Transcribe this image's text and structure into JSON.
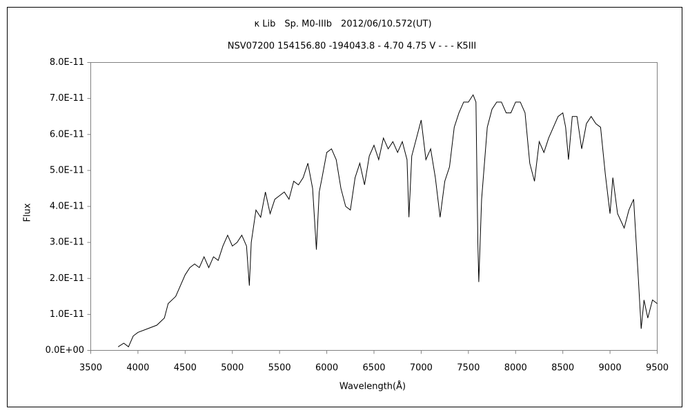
{
  "chart_data": {
    "type": "line",
    "title": "κ Lib　Sp. M0-IIIb　2012/06/10.572(UT)",
    "subtitle": "NSV07200 154156.80 -194043.8 - 4.70 4.75 V - - - K5III",
    "x_label": "Wavelength(Å)",
    "y_label": "Flux",
    "color": "#000000",
    "x": [
      3790,
      3850,
      3900,
      3950,
      4000,
      4100,
      4200,
      4280,
      4320,
      4400,
      4450,
      4500,
      4550,
      4600,
      4650,
      4700,
      4750,
      4800,
      4850,
      4900,
      4950,
      5000,
      5050,
      5100,
      5150,
      5180,
      5200,
      5250,
      5300,
      5350,
      5400,
      5450,
      5500,
      5550,
      5600,
      5650,
      5700,
      5750,
      5800,
      5850,
      5890,
      5920,
      5950,
      6000,
      6050,
      6100,
      6150,
      6200,
      6250,
      6300,
      6350,
      6400,
      6450,
      6500,
      6550,
      6600,
      6650,
      6700,
      6750,
      6800,
      6850,
      6870,
      6900,
      6950,
      7000,
      7050,
      7100,
      7150,
      7200,
      7250,
      7300,
      7350,
      7400,
      7450,
      7500,
      7550,
      7580,
      7600,
      7610,
      7640,
      7700,
      7750,
      7800,
      7850,
      7900,
      7950,
      8000,
      8050,
      8100,
      8150,
      8200,
      8250,
      8300,
      8350,
      8400,
      8450,
      8500,
      8530,
      8560,
      8600,
      8650,
      8700,
      8750,
      8800,
      8850,
      8900,
      8950,
      9000,
      9030,
      9080,
      9150,
      9200,
      9250,
      9300,
      9330,
      9360,
      9400,
      9450,
      9500
    ],
    "values": [
      1e-12,
      2e-12,
      1e-12,
      4e-12,
      5e-12,
      6e-12,
      7e-12,
      9e-12,
      1.3e-11,
      1.5e-11,
      1.8e-11,
      2.1e-11,
      2.3e-11,
      2.4e-11,
      2.3e-11,
      2.6e-11,
      2.3e-11,
      2.6e-11,
      2.5e-11,
      2.9e-11,
      3.2e-11,
      2.9e-11,
      3e-11,
      3.2e-11,
      2.9e-11,
      1.8e-11,
      3e-11,
      3.9e-11,
      3.7e-11,
      4.4e-11,
      3.8e-11,
      4.2e-11,
      4.3e-11,
      4.4e-11,
      4.2e-11,
      4.7e-11,
      4.6e-11,
      4.8e-11,
      5.2e-11,
      4.5e-11,
      2.8e-11,
      4.4e-11,
      4.8e-11,
      5.5e-11,
      5.6e-11,
      5.3e-11,
      4.5e-11,
      4e-11,
      3.9e-11,
      4.8e-11,
      5.2e-11,
      4.6e-11,
      5.4e-11,
      5.7e-11,
      5.3e-11,
      5.9e-11,
      5.6e-11,
      5.8e-11,
      5.5e-11,
      5.8e-11,
      5.3e-11,
      3.7e-11,
      5.4e-11,
      5.9e-11,
      6.4e-11,
      5.3e-11,
      5.6e-11,
      4.8e-11,
      3.7e-11,
      4.7e-11,
      5.1e-11,
      6.2e-11,
      6.6e-11,
      6.9e-11,
      6.9e-11,
      7.1e-11,
      6.9e-11,
      3e-11,
      1.9e-11,
      4.2e-11,
      6.2e-11,
      6.7e-11,
      6.9e-11,
      6.9e-11,
      6.6e-11,
      6.6e-11,
      6.9e-11,
      6.9e-11,
      6.6e-11,
      5.2e-11,
      4.7e-11,
      5.8e-11,
      5.5e-11,
      5.9e-11,
      6.2e-11,
      6.5e-11,
      6.6e-11,
      6.2e-11,
      5.3e-11,
      6.5e-11,
      6.5e-11,
      5.6e-11,
      6.3e-11,
      6.5e-11,
      6.3e-11,
      6.2e-11,
      4.9e-11,
      3.8e-11,
      4.8e-11,
      3.8e-11,
      3.4e-11,
      3.9e-11,
      4.2e-11,
      2e-11,
      6e-12,
      1.4e-11,
      9e-12,
      1.4e-11,
      1.3e-11
    ],
    "xlim": [
      3500,
      9500
    ],
    "xticks": [
      3500,
      4000,
      4500,
      5000,
      5500,
      6000,
      6500,
      7000,
      7500,
      8000,
      8500,
      9000,
      9500
    ],
    "ylim": [
      0,
      8e-11
    ],
    "yticks": [
      {
        "value": 0,
        "label": "0.0E+00"
      },
      {
        "value": 1e-11,
        "label": "1.0E-11"
      },
      {
        "value": 2e-11,
        "label": "2.0E-11"
      },
      {
        "value": 3e-11,
        "label": "3.0E-11"
      },
      {
        "value": 4e-11,
        "label": "4.0E-11"
      },
      {
        "value": 5e-11,
        "label": "5.0E-11"
      },
      {
        "value": 6e-11,
        "label": "6.0E-11"
      },
      {
        "value": 7e-11,
        "label": "7.0E-11"
      },
      {
        "value": 8e-11,
        "label": "8.0E-11"
      }
    ]
  }
}
